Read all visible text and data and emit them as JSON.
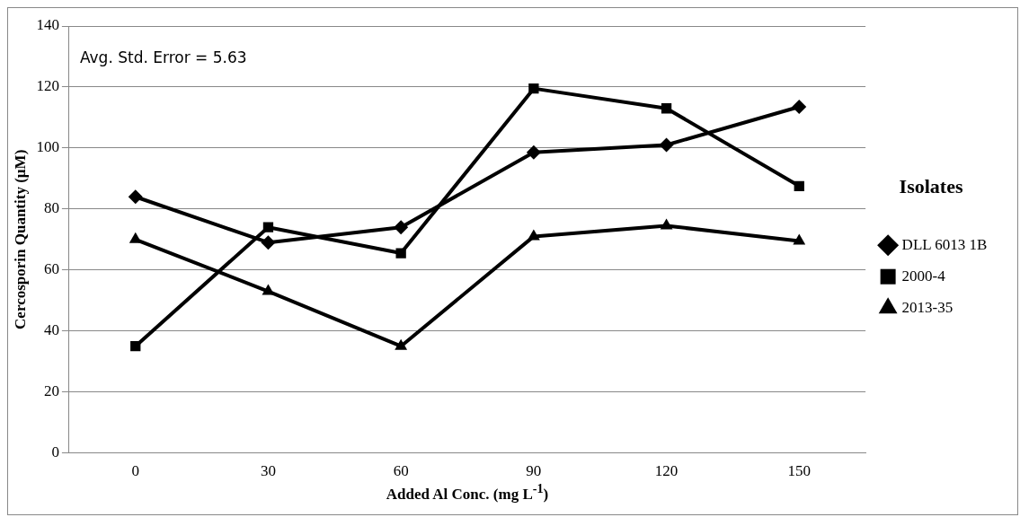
{
  "chart_data": {
    "type": "line",
    "xlabel": "Added Al Conc. (mg L$^{-1}$)",
    "ylabel": "Cercosporin Quantity (µM)",
    "legend_title": "Isolates",
    "categories": [
      "0",
      "30",
      "60",
      "90",
      "120",
      "150"
    ],
    "series": [
      {
        "name": "DLL 6013 1B",
        "color": "#000000",
        "marker": "diamond",
        "values": [
          84,
          69,
          74,
          98.6,
          101,
          113.5
        ]
      },
      {
        "name": "2000-4",
        "color": "#000000",
        "marker": "square",
        "values": [
          35,
          74,
          65.5,
          119.5,
          113,
          87.5
        ]
      },
      {
        "name": "2013-35",
        "color": "#000000",
        "marker": "triangle",
        "values": [
          70,
          53,
          35,
          71,
          74.5,
          69.5
        ]
      }
    ],
    "ylim": [
      0,
      140
    ],
    "yticks": [
      0,
      20,
      40,
      60,
      80,
      100,
      120,
      140
    ],
    "grid": "y",
    "legend": "right",
    "line_style": "solid",
    "annotations": [
      "Avg. Std. Error = 5.63"
    ]
  }
}
